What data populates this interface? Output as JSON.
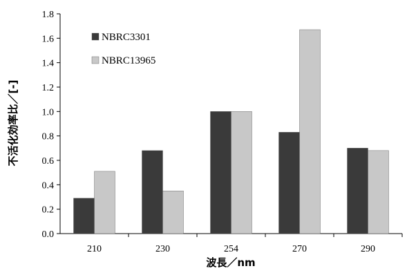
{
  "chart_data": {
    "type": "bar",
    "categories": [
      "210",
      "230",
      "254",
      "270",
      "290"
    ],
    "series": [
      {
        "name": "NBRC3301",
        "values": [
          0.29,
          0.68,
          1.0,
          0.83,
          0.7
        ],
        "color": "#3a3a3a"
      },
      {
        "name": "NBRC13965",
        "values": [
          0.51,
          0.35,
          1.0,
          1.67,
          0.68
        ],
        "color": "#c8c8c8"
      }
    ],
    "xlabel": "波長／nm",
    "ylabel": "不活化効率比／[-]",
    "ylim": [
      0,
      1.8
    ],
    "yticks": [
      "0.0",
      "0.2",
      "0.4",
      "0.6",
      "0.8",
      "1.0",
      "1.2",
      "1.4",
      "1.6",
      "1.8"
    ],
    "grid": false,
    "legend_position": "top-left"
  }
}
